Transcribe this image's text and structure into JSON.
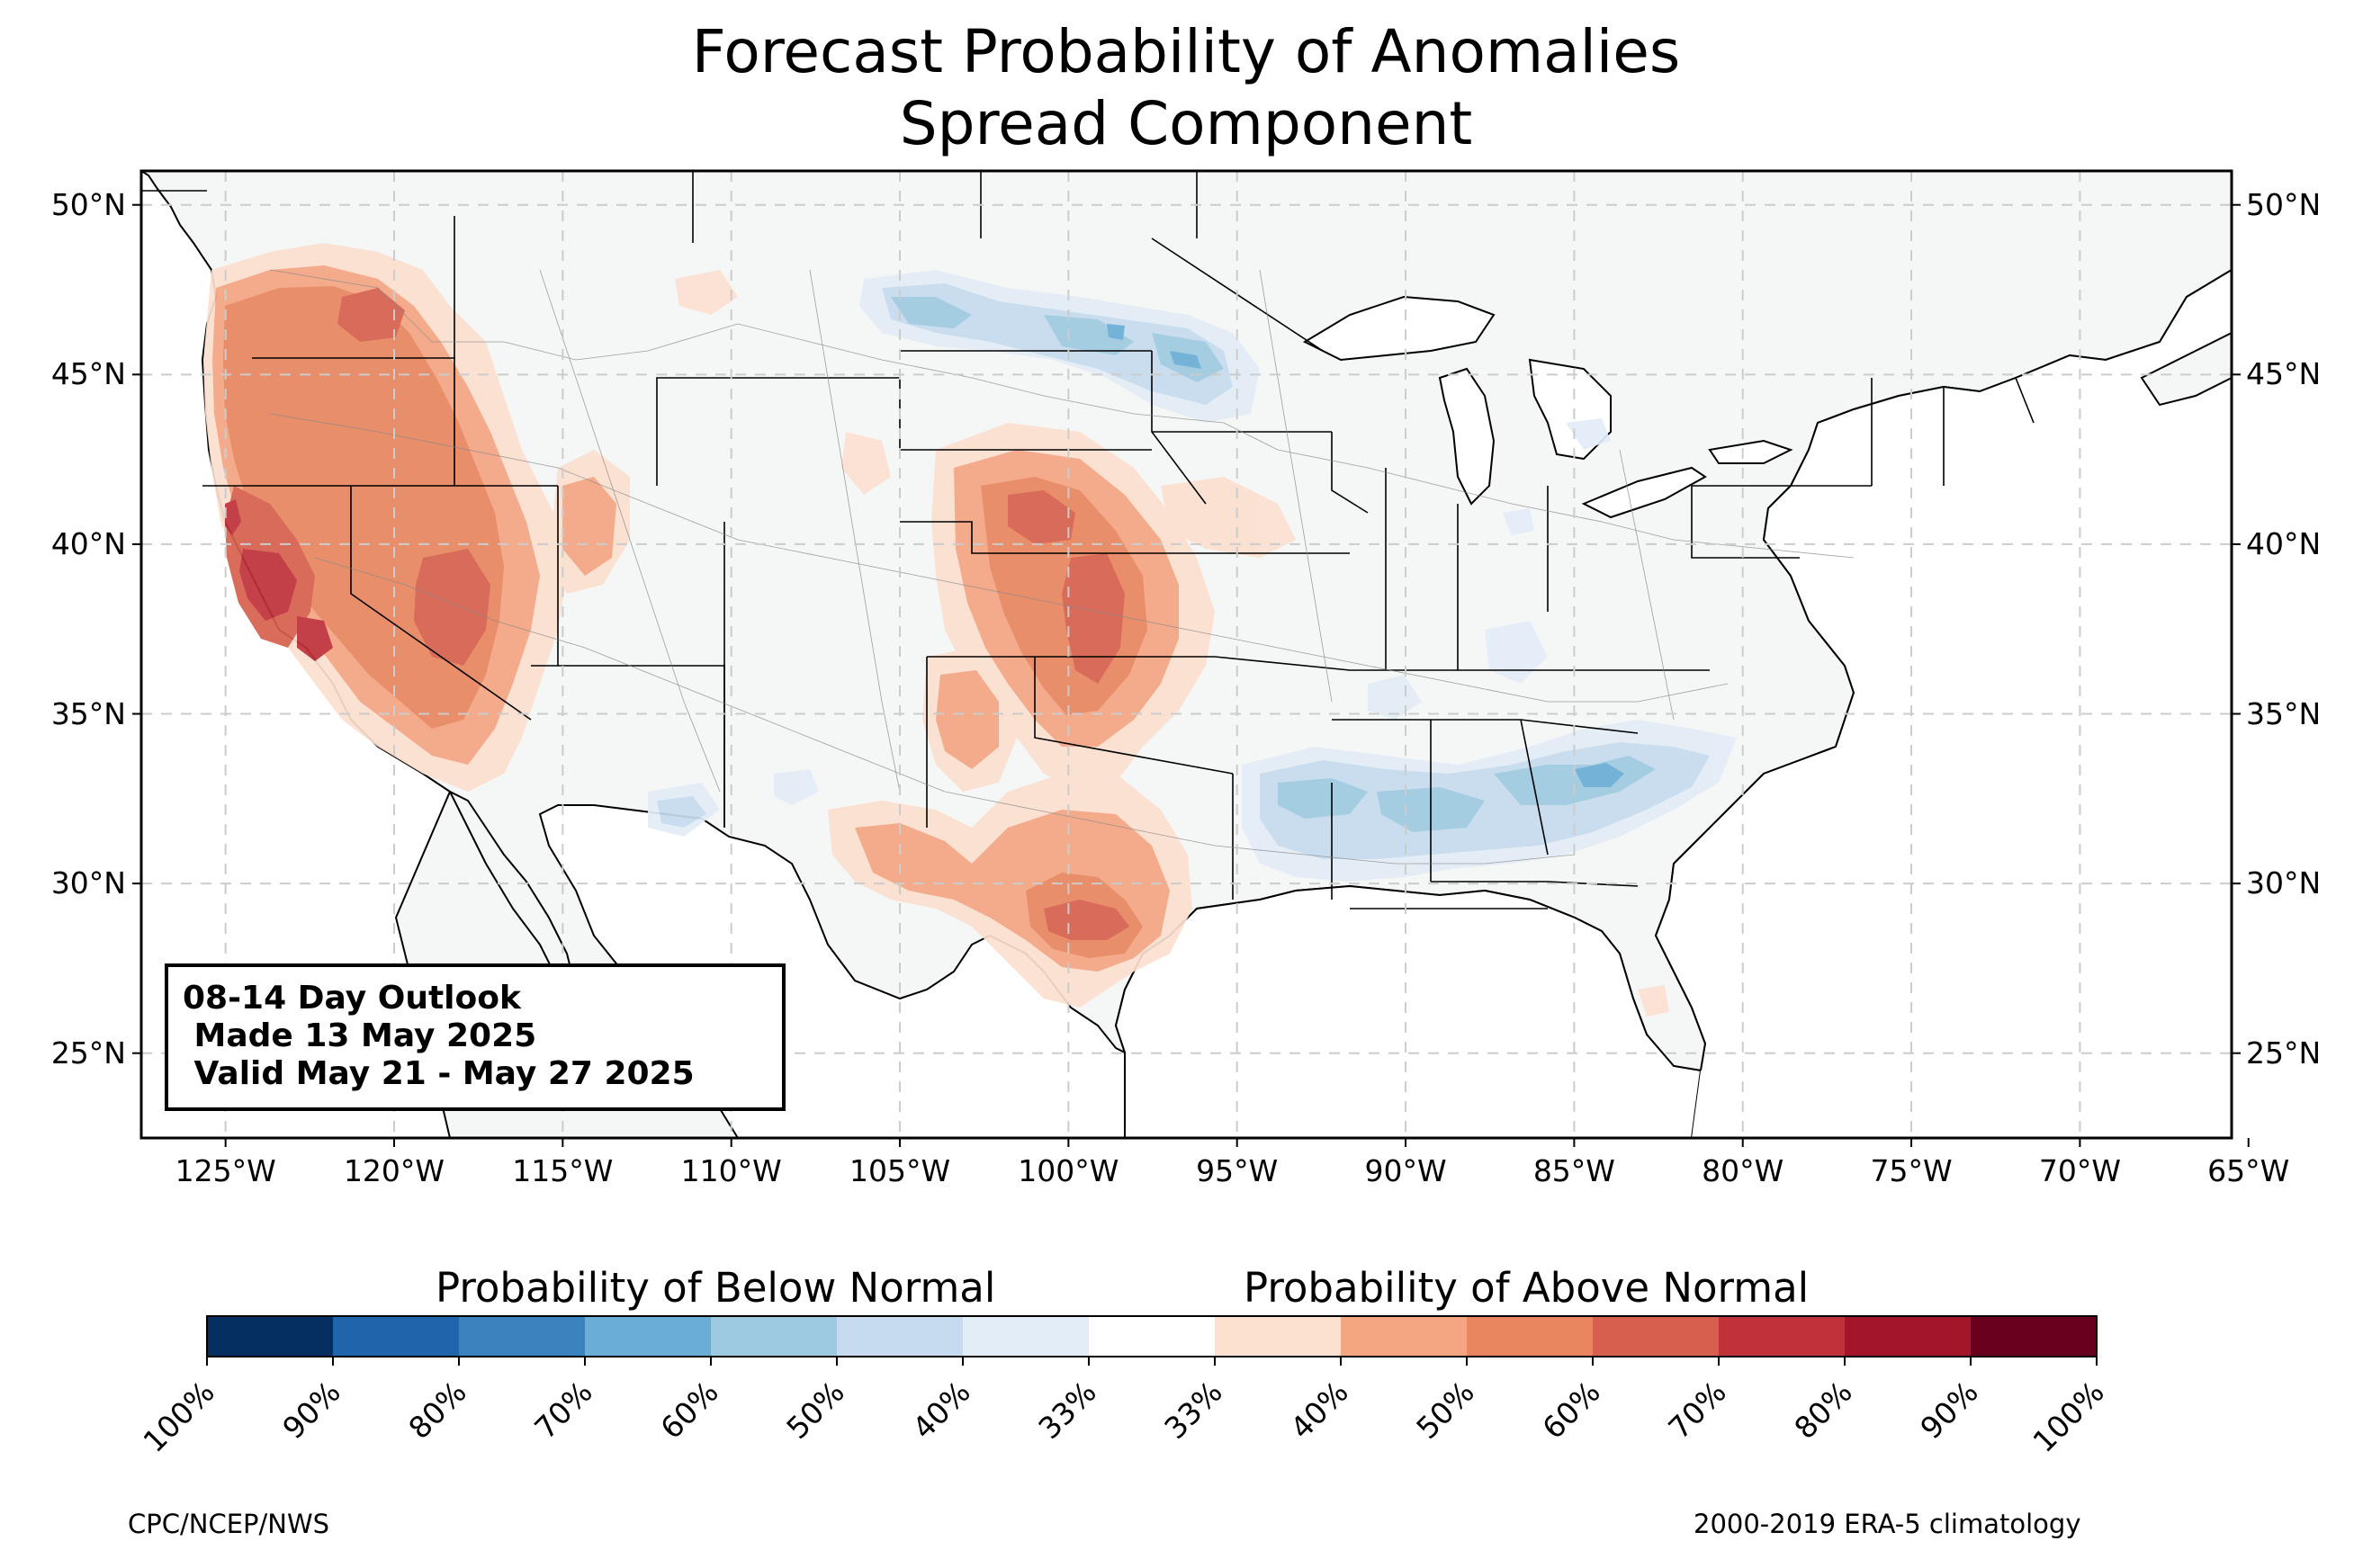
{
  "title": {
    "line1": "Forecast Probability of Anomalies",
    "line2": "Spread Component"
  },
  "map": {
    "lon_range": [
      -127.5,
      -65.5
    ],
    "lat_range": [
      22.5,
      51.0
    ],
    "lon_ticks": [
      "125°W",
      "120°W",
      "115°W",
      "110°W",
      "105°W",
      "100°W",
      "95°W",
      "90°W",
      "85°W",
      "80°W",
      "75°W",
      "70°W",
      "65°W"
    ],
    "lat_ticks": [
      "50°N",
      "45°N",
      "40°N",
      "35°N",
      "30°N",
      "25°N"
    ],
    "land_color": "#f5f6f6",
    "gridline": "dashed"
  },
  "outlook_box": {
    "line1": "08-14 Day Outlook",
    "line2": " Made 13 May 2025",
    "line3": " Valid May 21 - May 27 2025"
  },
  "anomalies": {
    "above_normal": [
      {
        "region": "California / Great Basin",
        "peak": "70-80%",
        "color": "#c0313a"
      },
      {
        "region": "Oregon / Idaho / Nevada / Utah",
        "peak": "60-70%",
        "color": "#dc6b56"
      },
      {
        "region": "Nebraska / Kansas",
        "peak": "60-70%",
        "color": "#dc6b56"
      },
      {
        "region": "Texas",
        "peak": "60-70%",
        "color": "#dc6b56"
      }
    ],
    "below_normal": [
      {
        "region": "North Dakota / Minnesota",
        "peak": "50-60%",
        "color": "#6aadd5"
      },
      {
        "region": "Gulf Coast / Southeast",
        "peak": "50-60%",
        "color": "#6aadd5"
      }
    ]
  },
  "colorbar": {
    "below_title": "Probability of Below Normal",
    "above_title": "Probability of Above Normal",
    "colors": [
      "#062f61",
      "#2065ab",
      "#3a83bf",
      "#6aadd5",
      "#9ecae1",
      "#c6dbef",
      "#e3edf7",
      "#ffffff",
      "#fce0d0",
      "#f4a582",
      "#e9865f",
      "#d6604d",
      "#c0313a",
      "#a31528",
      "#67001f"
    ],
    "labels": [
      "100%",
      "90%",
      "80%",
      "70%",
      "60%",
      "50%",
      "40%",
      "33%",
      "33%",
      "40%",
      "50%",
      "60%",
      "70%",
      "80%",
      "90%",
      "100%"
    ]
  },
  "footer": {
    "left": "CPC/NCEP/NWS",
    "right": "2000-2019 ERA-5 climatology"
  }
}
